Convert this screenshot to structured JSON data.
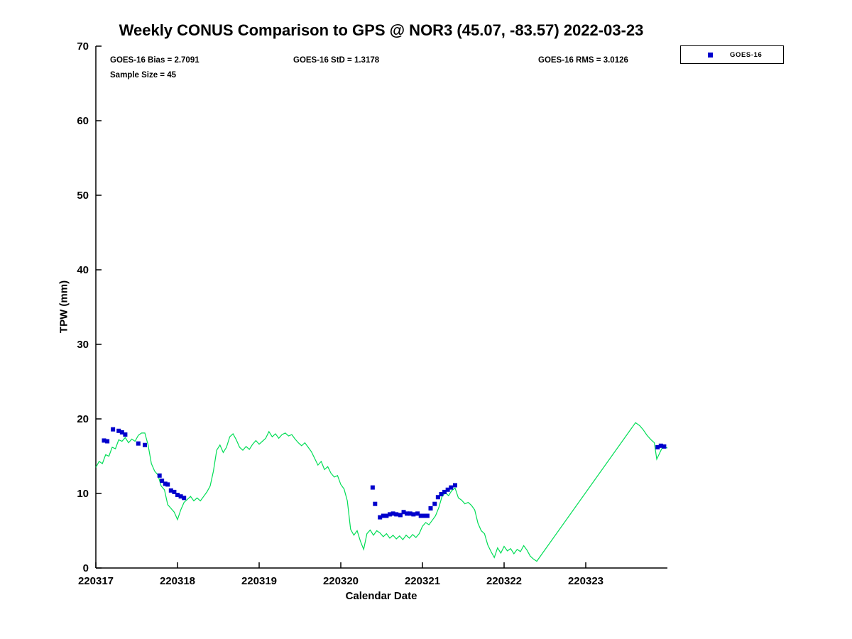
{
  "annotations": {
    "bias": "GOES-16 Bias = 2.7091",
    "std": "GOES-16 StD = 1.3178",
    "rms": "GOES-16 RMS = 3.0126",
    "sample_size": "Sample Size = 45"
  },
  "legend": {
    "label": "GOES-16",
    "marker_color": "#0000cc",
    "marker": "square"
  },
  "chart_data": {
    "type": "line",
    "title": "Weekly CONUS Comparison to GPS @ NOR3 (45.07, -83.57) 2022-03-23",
    "xlabel": "Calendar Date",
    "ylabel": "TPW (mm)",
    "xlim": [
      0,
      7
    ],
    "ylim": [
      0,
      70
    ],
    "grid": false,
    "legend_position": "top-right",
    "y_ticks": [
      0,
      10,
      20,
      30,
      40,
      50,
      60,
      70
    ],
    "x_ticks": [
      {
        "pos": 0,
        "label": "220317"
      },
      {
        "pos": 1,
        "label": "220318"
      },
      {
        "pos": 2,
        "label": "220319"
      },
      {
        "pos": 3,
        "label": "220320"
      },
      {
        "pos": 4,
        "label": "220321"
      },
      {
        "pos": 5,
        "label": "220322"
      },
      {
        "pos": 6,
        "label": "220323"
      }
    ],
    "series": [
      {
        "name": "gps",
        "type": "line",
        "color": "#00dd55",
        "points": [
          [
            0.0,
            13.5
          ],
          [
            0.04,
            14.3
          ],
          [
            0.08,
            14.0
          ],
          [
            0.12,
            15.2
          ],
          [
            0.16,
            15.0
          ],
          [
            0.2,
            16.2
          ],
          [
            0.24,
            16.0
          ],
          [
            0.28,
            17.2
          ],
          [
            0.32,
            17.0
          ],
          [
            0.36,
            17.5
          ],
          [
            0.4,
            16.8
          ],
          [
            0.44,
            17.3
          ],
          [
            0.48,
            17.0
          ],
          [
            0.52,
            17.8
          ],
          [
            0.56,
            18.1
          ],
          [
            0.6,
            18.1
          ],
          [
            0.64,
            16.5
          ],
          [
            0.68,
            14.0
          ],
          [
            0.72,
            13.0
          ],
          [
            0.76,
            12.5
          ],
          [
            0.8,
            11.0
          ],
          [
            0.84,
            10.5
          ],
          [
            0.88,
            8.5
          ],
          [
            0.92,
            8.0
          ],
          [
            0.96,
            7.5
          ],
          [
            1.0,
            6.5
          ],
          [
            1.04,
            7.8
          ],
          [
            1.08,
            8.8
          ],
          [
            1.12,
            9.2
          ],
          [
            1.16,
            9.6
          ],
          [
            1.2,
            9.0
          ],
          [
            1.24,
            9.4
          ],
          [
            1.28,
            9.0
          ],
          [
            1.32,
            9.6
          ],
          [
            1.36,
            10.2
          ],
          [
            1.4,
            11.0
          ],
          [
            1.44,
            13.0
          ],
          [
            1.48,
            15.8
          ],
          [
            1.52,
            16.5
          ],
          [
            1.56,
            15.5
          ],
          [
            1.6,
            16.2
          ],
          [
            1.64,
            17.6
          ],
          [
            1.68,
            18.0
          ],
          [
            1.72,
            17.2
          ],
          [
            1.76,
            16.2
          ],
          [
            1.8,
            15.8
          ],
          [
            1.84,
            16.3
          ],
          [
            1.88,
            15.9
          ],
          [
            1.92,
            16.6
          ],
          [
            1.96,
            17.1
          ],
          [
            2.0,
            16.6
          ],
          [
            2.04,
            17.0
          ],
          [
            2.08,
            17.4
          ],
          [
            2.12,
            18.3
          ],
          [
            2.16,
            17.6
          ],
          [
            2.2,
            18.0
          ],
          [
            2.24,
            17.4
          ],
          [
            2.28,
            17.9
          ],
          [
            2.32,
            18.1
          ],
          [
            2.36,
            17.7
          ],
          [
            2.4,
            17.9
          ],
          [
            2.44,
            17.3
          ],
          [
            2.48,
            16.8
          ],
          [
            2.52,
            16.4
          ],
          [
            2.56,
            16.8
          ],
          [
            2.6,
            16.2
          ],
          [
            2.64,
            15.6
          ],
          [
            2.68,
            14.7
          ],
          [
            2.72,
            13.8
          ],
          [
            2.76,
            14.3
          ],
          [
            2.8,
            13.2
          ],
          [
            2.84,
            13.6
          ],
          [
            2.88,
            12.7
          ],
          [
            2.92,
            12.2
          ],
          [
            2.96,
            12.4
          ],
          [
            3.0,
            11.2
          ],
          [
            3.04,
            10.6
          ],
          [
            3.08,
            9.0
          ],
          [
            3.12,
            5.2
          ],
          [
            3.16,
            4.4
          ],
          [
            3.2,
            5.0
          ],
          [
            3.24,
            3.6
          ],
          [
            3.28,
            2.5
          ],
          [
            3.32,
            4.6
          ],
          [
            3.36,
            5.1
          ],
          [
            3.4,
            4.4
          ],
          [
            3.44,
            5.0
          ],
          [
            3.48,
            4.7
          ],
          [
            3.52,
            4.2
          ],
          [
            3.56,
            4.6
          ],
          [
            3.6,
            4.0
          ],
          [
            3.64,
            4.4
          ],
          [
            3.68,
            3.9
          ],
          [
            3.72,
            4.3
          ],
          [
            3.76,
            3.8
          ],
          [
            3.8,
            4.4
          ],
          [
            3.84,
            4.0
          ],
          [
            3.88,
            4.5
          ],
          [
            3.92,
            4.1
          ],
          [
            3.96,
            4.6
          ],
          [
            4.0,
            5.6
          ],
          [
            4.04,
            6.1
          ],
          [
            4.08,
            5.8
          ],
          [
            4.12,
            6.4
          ],
          [
            4.16,
            7.0
          ],
          [
            4.2,
            8.1
          ],
          [
            4.24,
            9.6
          ],
          [
            4.28,
            10.1
          ],
          [
            4.32,
            9.7
          ],
          [
            4.36,
            10.4
          ],
          [
            4.4,
            10.7
          ],
          [
            4.44,
            9.4
          ],
          [
            4.48,
            9.1
          ],
          [
            4.52,
            8.6
          ],
          [
            4.56,
            8.8
          ],
          [
            4.6,
            8.4
          ],
          [
            4.64,
            7.8
          ],
          [
            4.68,
            6.0
          ],
          [
            4.72,
            5.0
          ],
          [
            4.76,
            4.6
          ],
          [
            4.8,
            3.1
          ],
          [
            4.84,
            2.2
          ],
          [
            4.88,
            1.4
          ],
          [
            4.92,
            2.7
          ],
          [
            4.96,
            2.0
          ],
          [
            5.0,
            2.9
          ],
          [
            5.04,
            2.3
          ],
          [
            5.08,
            2.6
          ],
          [
            5.12,
            1.9
          ],
          [
            5.16,
            2.5
          ],
          [
            5.2,
            2.2
          ],
          [
            5.24,
            3.0
          ],
          [
            5.28,
            2.4
          ],
          [
            5.32,
            1.6
          ],
          [
            5.36,
            1.2
          ],
          [
            5.4,
            0.9
          ],
          [
            6.61,
            19.5
          ],
          [
            6.66,
            19.1
          ],
          [
            6.7,
            18.6
          ],
          [
            6.75,
            17.8
          ],
          [
            6.8,
            17.2
          ],
          [
            6.84,
            16.8
          ],
          [
            6.87,
            14.6
          ],
          [
            6.9,
            15.3
          ],
          [
            6.93,
            16.0
          ],
          [
            6.97,
            16.2
          ],
          [
            7.0,
            16.1
          ]
        ]
      },
      {
        "name": "goes16",
        "legend_label": "GOES-16",
        "type": "scatter",
        "marker": "square",
        "color": "#0000cc",
        "points": [
          [
            0.1,
            17.1
          ],
          [
            0.14,
            17.0
          ],
          [
            0.21,
            18.6
          ],
          [
            0.28,
            18.4
          ],
          [
            0.32,
            18.2
          ],
          [
            0.36,
            17.9
          ],
          [
            0.52,
            16.7
          ],
          [
            0.6,
            16.5
          ],
          [
            0.78,
            12.4
          ],
          [
            0.81,
            11.7
          ],
          [
            0.85,
            11.3
          ],
          [
            0.88,
            11.2
          ],
          [
            0.92,
            10.4
          ],
          [
            0.96,
            10.2
          ],
          [
            1.0,
            9.8
          ],
          [
            1.04,
            9.6
          ],
          [
            1.08,
            9.4
          ],
          [
            3.39,
            10.8
          ],
          [
            3.42,
            8.6
          ],
          [
            3.48,
            6.8
          ],
          [
            3.52,
            7.0
          ],
          [
            3.56,
            7.0
          ],
          [
            3.6,
            7.2
          ],
          [
            3.64,
            7.3
          ],
          [
            3.68,
            7.2
          ],
          [
            3.73,
            7.1
          ],
          [
            3.77,
            7.5
          ],
          [
            3.81,
            7.3
          ],
          [
            3.85,
            7.3
          ],
          [
            3.89,
            7.2
          ],
          [
            3.94,
            7.3
          ],
          [
            3.98,
            7.0
          ],
          [
            4.02,
            7.0
          ],
          [
            4.06,
            7.0
          ],
          [
            4.1,
            8.0
          ],
          [
            4.15,
            8.6
          ],
          [
            4.19,
            9.5
          ],
          [
            4.23,
            9.9
          ],
          [
            4.27,
            10.2
          ],
          [
            4.31,
            10.5
          ],
          [
            4.35,
            10.8
          ],
          [
            4.4,
            11.1
          ],
          [
            6.88,
            16.2
          ],
          [
            6.92,
            16.4
          ],
          [
            6.96,
            16.3
          ]
        ]
      }
    ]
  }
}
